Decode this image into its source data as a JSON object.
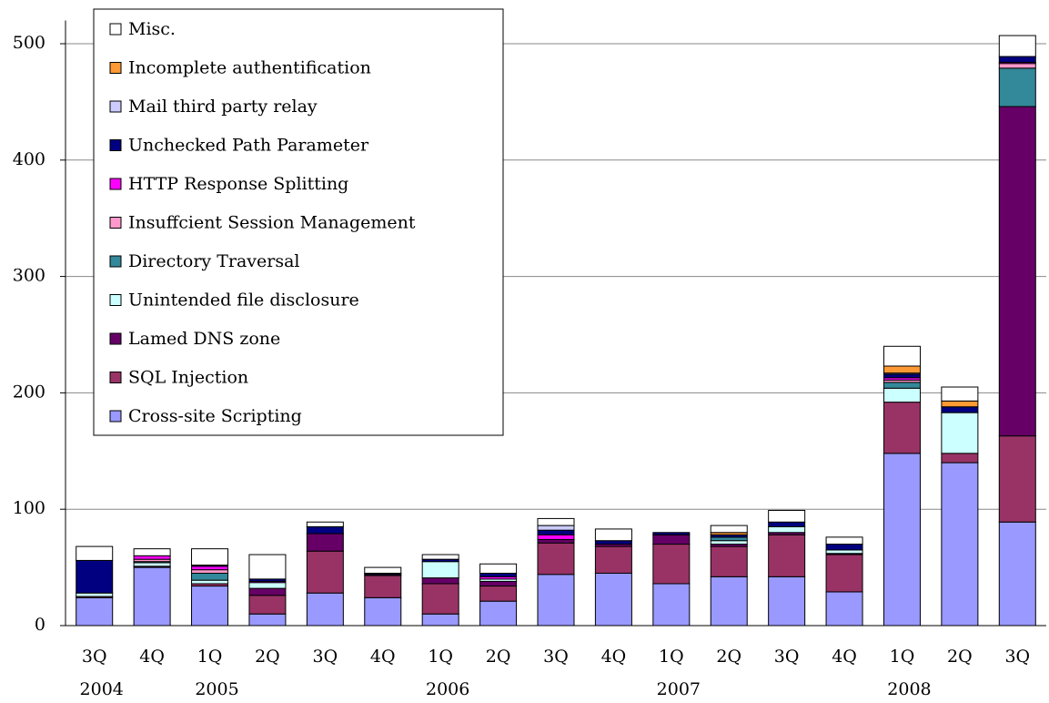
{
  "chart_data": {
    "type": "stacked_bar",
    "categories": [
      "3Q",
      "4Q",
      "1Q",
      "2Q",
      "3Q",
      "4Q",
      "1Q",
      "2Q",
      "3Q",
      "4Q",
      "1Q",
      "2Q",
      "3Q",
      "4Q",
      "1Q",
      "2Q",
      "3Q"
    ],
    "year_labels": [
      "2004",
      null,
      "2005",
      null,
      null,
      null,
      "2006",
      null,
      null,
      null,
      "2007",
      null,
      null,
      null,
      "2008",
      null,
      null
    ],
    "ylim": [
      0,
      520
    ],
    "yticks": [
      0,
      100,
      200,
      300,
      400,
      500
    ],
    "grid": true,
    "legend": "upper left",
    "series": [
      {
        "name": "Cross-site Scripting",
        "color": "#9999ff",
        "values": [
          24,
          50,
          34,
          10,
          28,
          24,
          10,
          21,
          44,
          45,
          36,
          42,
          42,
          29,
          148,
          140,
          89
        ]
      },
      {
        "name": "SQL Injection",
        "color": "#993366",
        "values": [
          1,
          1,
          2,
          16,
          36,
          19,
          26,
          13,
          27,
          23,
          34,
          26,
          36,
          32,
          44,
          8,
          74
        ]
      },
      {
        "name": "Lamed DNS zone",
        "color": "#660066",
        "values": [
          0,
          0,
          0,
          6,
          15,
          1,
          5,
          4,
          3,
          2,
          8,
          2,
          2,
          1,
          0,
          0,
          283
        ]
      },
      {
        "name": "Unintended file disclosure",
        "color": "#ccffff",
        "values": [
          3,
          3,
          3,
          5,
          0,
          0,
          14,
          2,
          0,
          0,
          0,
          3,
          5,
          3,
          12,
          35,
          0
        ]
      },
      {
        "name": "Directory Traversal",
        "color": "#338899",
        "values": [
          0,
          1,
          6,
          0,
          0,
          0,
          0,
          0,
          0,
          0,
          0,
          3,
          0,
          0,
          5,
          0,
          33
        ]
      },
      {
        "name": "Insuffcient Session Management",
        "color": "#ff99cc",
        "values": [
          0,
          2,
          3,
          0,
          0,
          0,
          0,
          0,
          0,
          0,
          0,
          0,
          0,
          0,
          2,
          0,
          4
        ]
      },
      {
        "name": "HTTP Response Splitting",
        "color": "#ff00ff",
        "values": [
          0,
          3,
          3,
          1,
          0,
          0,
          0,
          2,
          4,
          0,
          0,
          0,
          0,
          0,
          2,
          0,
          1
        ]
      },
      {
        "name": "Unchecked Path Parameter",
        "color": "#000080",
        "values": [
          28,
          0,
          1,
          2,
          6,
          1,
          2,
          3,
          4,
          3,
          2,
          2,
          4,
          5,
          3,
          5,
          5
        ]
      },
      {
        "name": "Mail third party relay",
        "color": "#ccccff",
        "values": [
          0,
          0,
          0,
          0,
          0,
          0,
          0,
          0,
          4,
          0,
          0,
          0,
          0,
          0,
          1,
          0,
          0
        ]
      },
      {
        "name": "Incomplete authentification",
        "color": "#ff9933",
        "values": [
          0,
          0,
          0,
          0,
          0,
          0,
          0,
          0,
          0,
          0,
          0,
          2,
          0,
          0,
          6,
          5,
          0
        ]
      },
      {
        "name": "Misc.",
        "color": "#ffffff",
        "values": [
          12,
          6,
          14,
          21,
          4,
          5,
          4,
          8,
          6,
          10,
          0,
          6,
          10,
          6,
          17,
          12,
          18
        ]
      }
    ]
  }
}
